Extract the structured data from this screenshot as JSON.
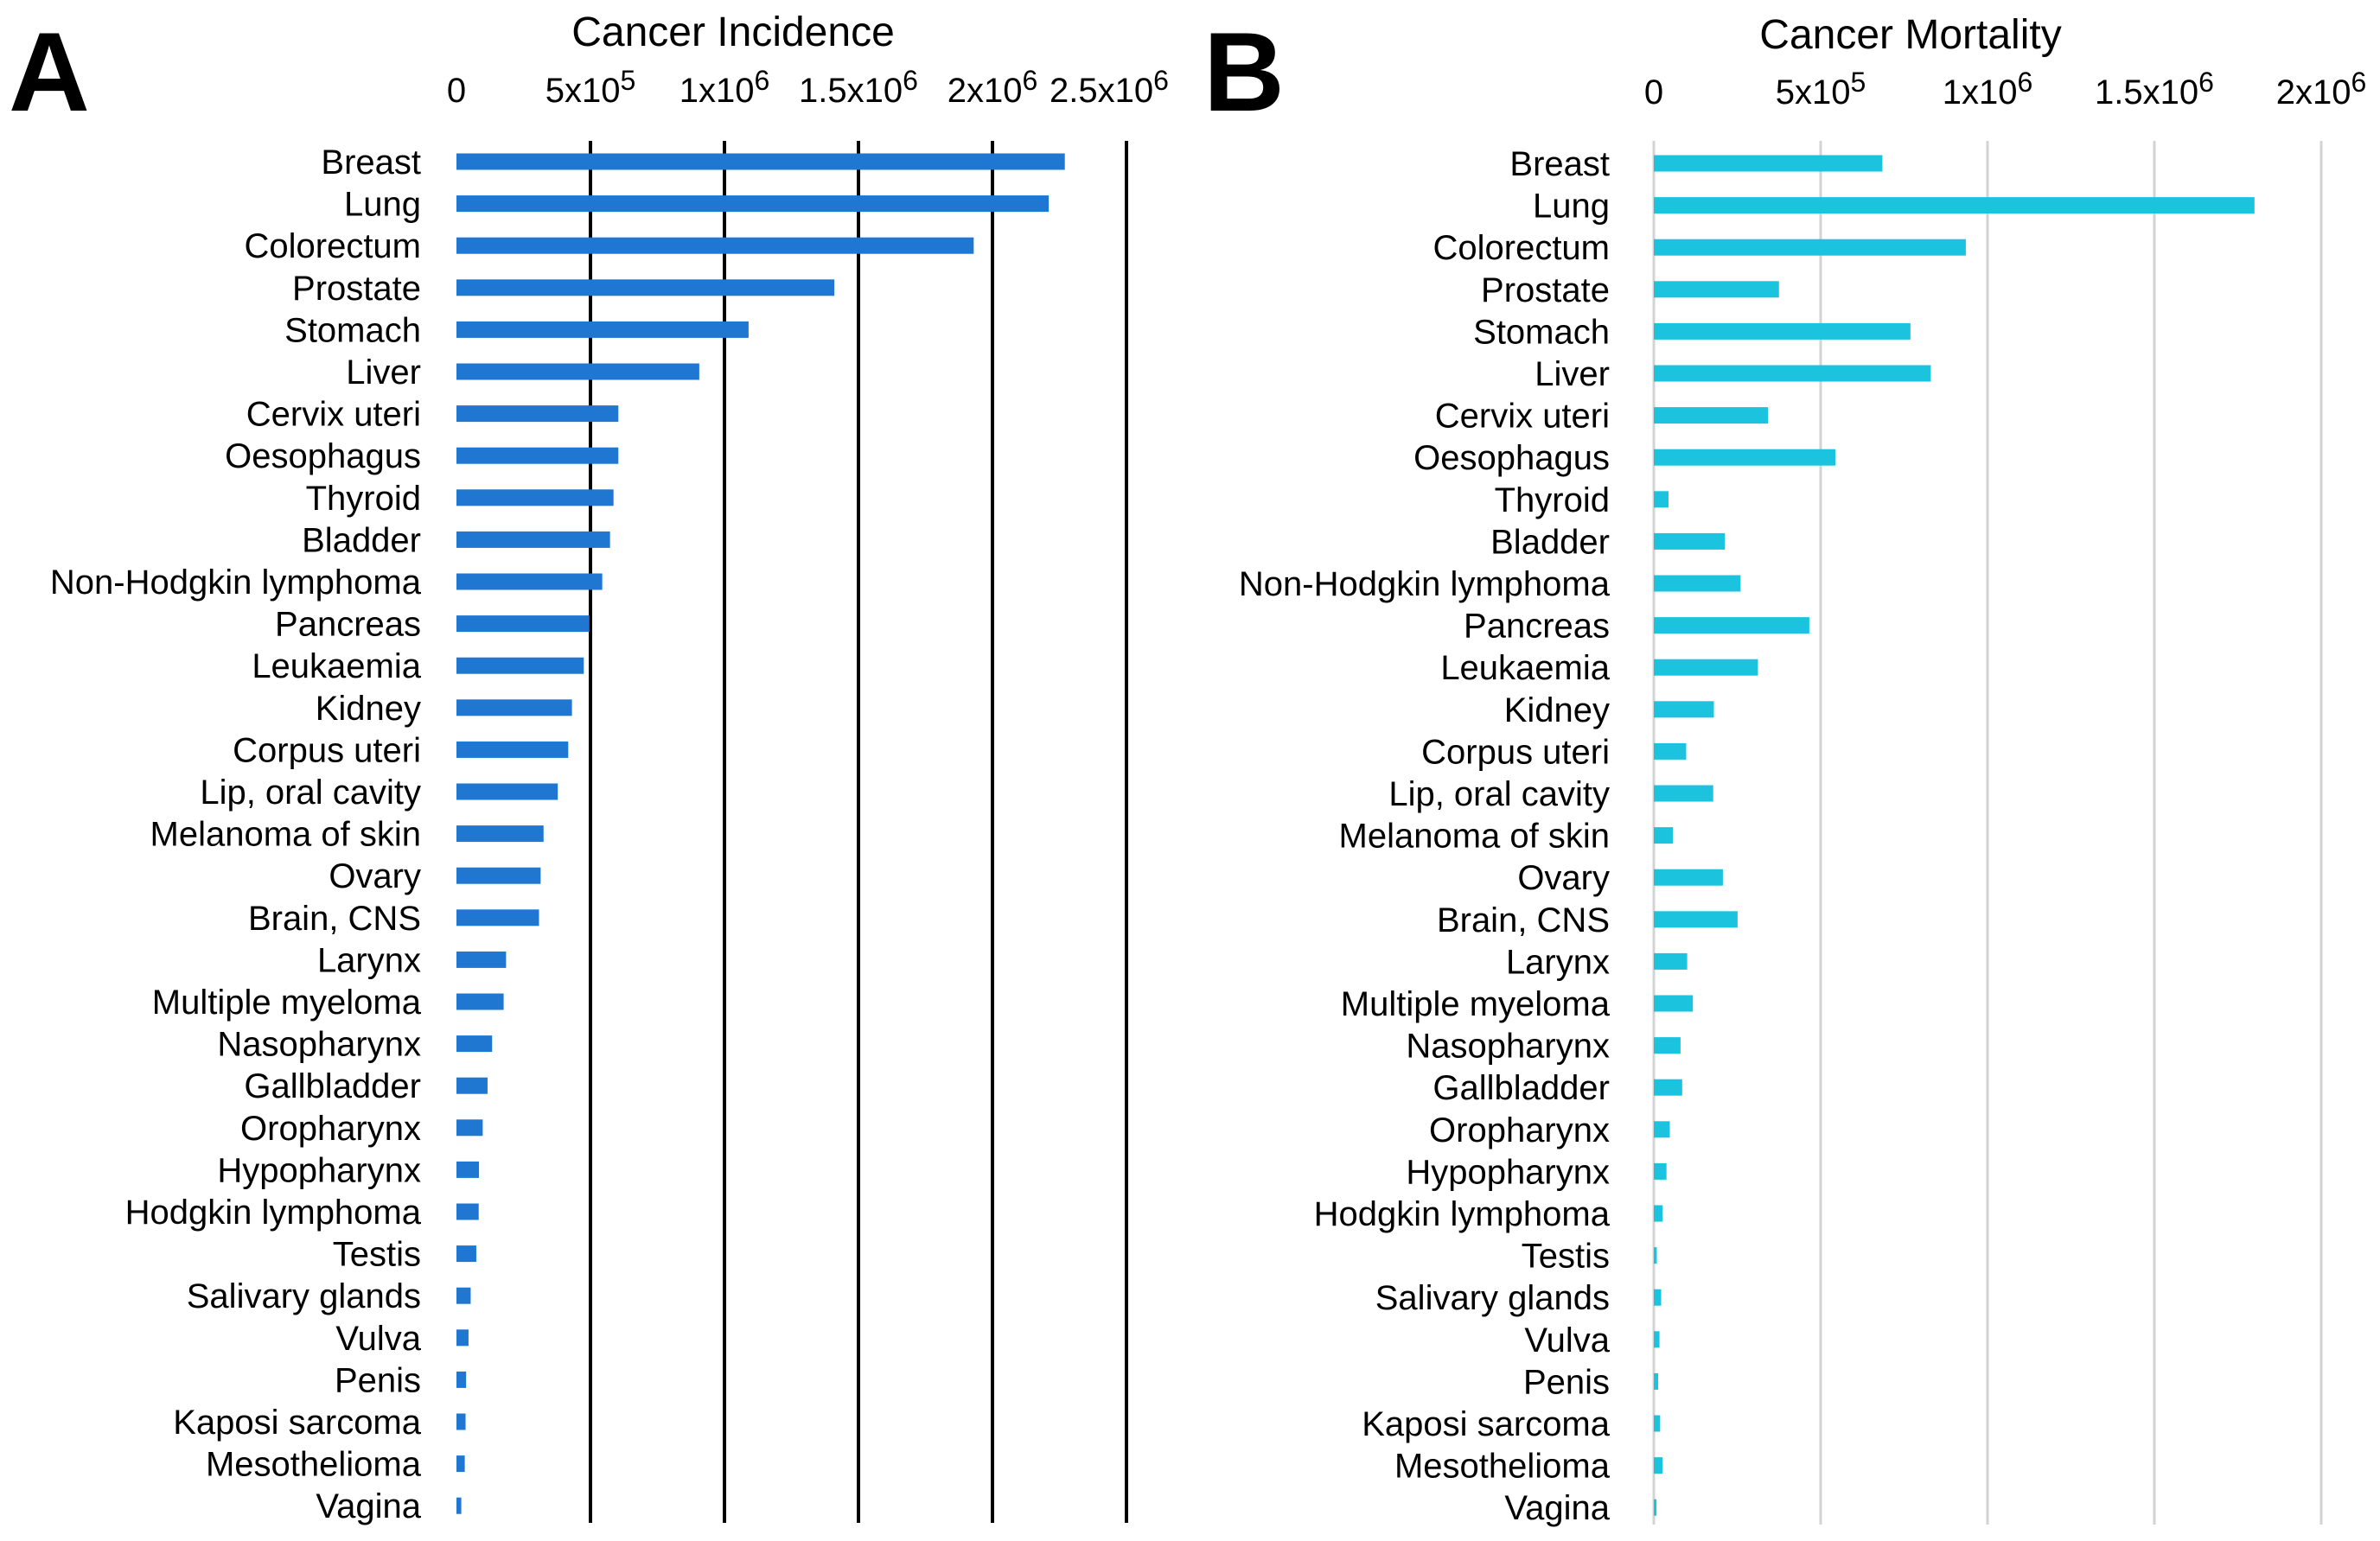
{
  "chart_data": [
    {
      "panel_label": "A",
      "type": "bar",
      "orientation": "horizontal",
      "title": "Cancer Incidence",
      "color": "#1f77d2",
      "grid": true,
      "grid_color": "#000000",
      "xlim": [
        0,
        2500000
      ],
      "ticks": [
        {
          "value": 0,
          "base": "0",
          "exp": ""
        },
        {
          "value": 500000,
          "base": "5x10",
          "exp": "5"
        },
        {
          "value": 1000000,
          "base": "1x10",
          "exp": "6"
        },
        {
          "value": 1500000,
          "base": "1.5x10",
          "exp": "6"
        },
        {
          "value": 2000000,
          "base": "2x10",
          "exp": "6"
        },
        {
          "value": 2500000,
          "base": "2.5x10",
          "exp": "6"
        }
      ],
      "categories": [
        "Breast",
        "Lung",
        "Colorectum",
        "Prostate",
        "Stomach",
        "Liver",
        "Cervix uteri",
        "Oesophagus",
        "Thyroid",
        "Bladder",
        "Non-Hodgkin lymphoma",
        "Pancreas",
        "Leukaemia",
        "Kidney",
        "Corpus uteri",
        "Lip, oral cavity",
        "Melanoma of skin",
        "Ovary",
        "Brain, CNS",
        "Larynx",
        "Multiple myeloma",
        "Nasopharynx",
        "Gallbladder",
        "Oropharynx",
        "Hypopharynx",
        "Hodgkin lymphoma",
        "Testis",
        "Salivary glands",
        "Vulva",
        "Penis",
        "Kaposi sarcoma",
        "Mesothelioma",
        "Vagina"
      ],
      "values": [
        2270000,
        2210000,
        1930000,
        1410000,
        1090000,
        906000,
        604000,
        604000,
        586000,
        573000,
        544000,
        496000,
        475000,
        431000,
        417000,
        378000,
        325000,
        314000,
        308000,
        185000,
        176000,
        133000,
        116000,
        98000,
        84000,
        83000,
        74000,
        53000,
        45000,
        36000,
        34000,
        31000,
        18000
      ]
    },
    {
      "panel_label": "B",
      "type": "bar",
      "orientation": "horizontal",
      "title": "Cancer Mortality",
      "color": "#1bc3de",
      "grid": true,
      "grid_color": "#d3d3d3",
      "xlim": [
        0,
        2000000
      ],
      "ticks": [
        {
          "value": 0,
          "base": "0",
          "exp": ""
        },
        {
          "value": 500000,
          "base": "5x10",
          "exp": "5"
        },
        {
          "value": 1000000,
          "base": "1x10",
          "exp": "6"
        },
        {
          "value": 1500000,
          "base": "1.5x10",
          "exp": "6"
        },
        {
          "value": 2000000,
          "base": "2x10",
          "exp": "6"
        }
      ],
      "categories": [
        "Breast",
        "Lung",
        "Colorectum",
        "Prostate",
        "Stomach",
        "Liver",
        "Cervix uteri",
        "Oesophagus",
        "Thyroid",
        "Bladder",
        "Non-Hodgkin lymphoma",
        "Pancreas",
        "Leukaemia",
        "Kidney",
        "Corpus uteri",
        "Lip, oral cavity",
        "Melanoma of skin",
        "Ovary",
        "Brain, CNS",
        "Larynx",
        "Multiple myeloma",
        "Nasopharynx",
        "Gallbladder",
        "Oropharynx",
        "Hypopharynx",
        "Hodgkin lymphoma",
        "Testis",
        "Salivary glands",
        "Vulva",
        "Penis",
        "Kaposi sarcoma",
        "Mesothelioma",
        "Vagina"
      ],
      "values": [
        685000,
        1800000,
        935000,
        375000,
        769000,
        830000,
        342000,
        544000,
        44000,
        213000,
        260000,
        466000,
        312000,
        180000,
        97000,
        178000,
        57000,
        207000,
        251000,
        100000,
        117000,
        80000,
        85000,
        48000,
        38000,
        26000,
        9000,
        22000,
        17000,
        13000,
        19000,
        26000,
        8000
      ]
    }
  ]
}
